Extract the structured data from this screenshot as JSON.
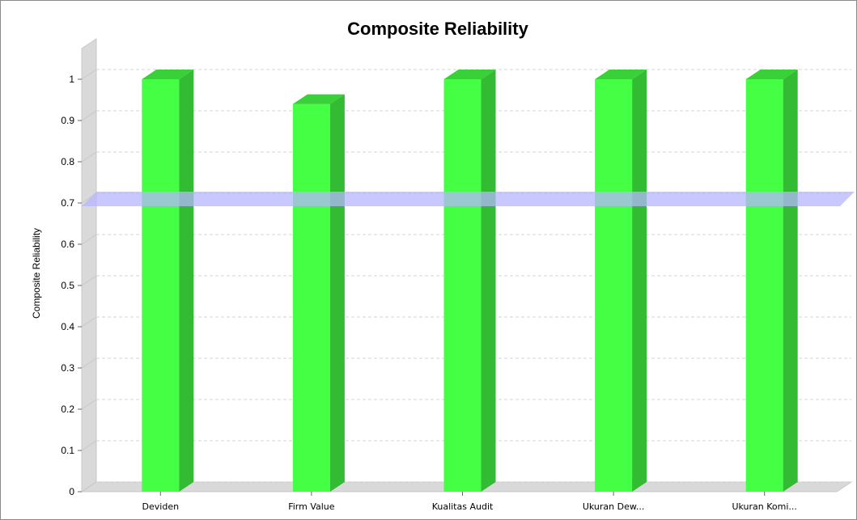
{
  "chart_data": {
    "type": "bar",
    "title": "Composite Reliability",
    "xlabel": "",
    "ylabel": "Composite Reliability",
    "categories": [
      "Deviden",
      "Firm Value",
      "Kualitas Audit",
      "Ukuran Dew...",
      "Ukuran Komi..."
    ],
    "values": [
      1.0,
      0.94,
      1.0,
      1.0,
      1.0
    ],
    "ylim": [
      0,
      1.0
    ],
    "yticks": [
      "0",
      "0.1",
      "0.2",
      "0.3",
      "0.4",
      "0.5",
      "0.6",
      "0.7",
      "0.8",
      "0.9",
      "1"
    ],
    "threshold": 0.7,
    "grid": true,
    "three_d": true,
    "colors": {
      "bar_front": "#44ff44",
      "bar_side": "#33bb33",
      "bar_top": "#3ad03a",
      "threshold": "#b6b6ff",
      "wall": "#d9d9d9",
      "grid": "#d4d4d4"
    }
  }
}
